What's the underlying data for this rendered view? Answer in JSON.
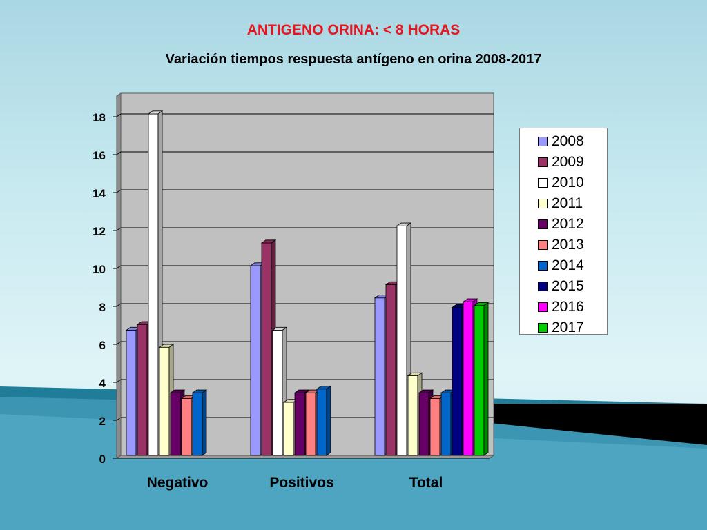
{
  "title": "ANTIGENO ORINA: < 8 HORAS",
  "subtitle": "Variación tiempos respuesta antígeno en orina 2008-2017",
  "chart_data": {
    "type": "bar",
    "categories": [
      "Negativo",
      "Positivos",
      "Total"
    ],
    "yticks": [
      "0",
      "2",
      "4",
      "6",
      "8",
      "10",
      "12",
      "14",
      "16",
      "18"
    ],
    "ylim": [
      0,
      19
    ],
    "grid": true,
    "legend_position": "right",
    "series": [
      {
        "name": "2008",
        "color": "#9999ff",
        "values": [
          6.6,
          10.0,
          8.3
        ]
      },
      {
        "name": "2009",
        "color": "#993366",
        "values": [
          6.9,
          11.2,
          9.0
        ]
      },
      {
        "name": "2010",
        "color": "#ffffff",
        "values": [
          18.0,
          6.6,
          12.1
        ]
      },
      {
        "name": "2011",
        "color": "#ffffcc",
        "values": [
          5.7,
          2.8,
          4.2
        ]
      },
      {
        "name": "2012",
        "color": "#660066",
        "values": [
          3.3,
          3.3,
          3.3
        ]
      },
      {
        "name": "2013",
        "color": "#ff8080",
        "values": [
          3.0,
          3.3,
          3.0
        ]
      },
      {
        "name": "2014",
        "color": "#0066cc",
        "values": [
          3.3,
          3.5,
          3.3
        ]
      },
      {
        "name": "2015",
        "color": "#000080",
        "values": [
          null,
          null,
          7.8
        ]
      },
      {
        "name": "2016",
        "color": "#ff00ff",
        "values": [
          null,
          null,
          8.1
        ]
      },
      {
        "name": "2017",
        "color": "#00cc00",
        "values": [
          null,
          null,
          7.9
        ]
      }
    ]
  }
}
